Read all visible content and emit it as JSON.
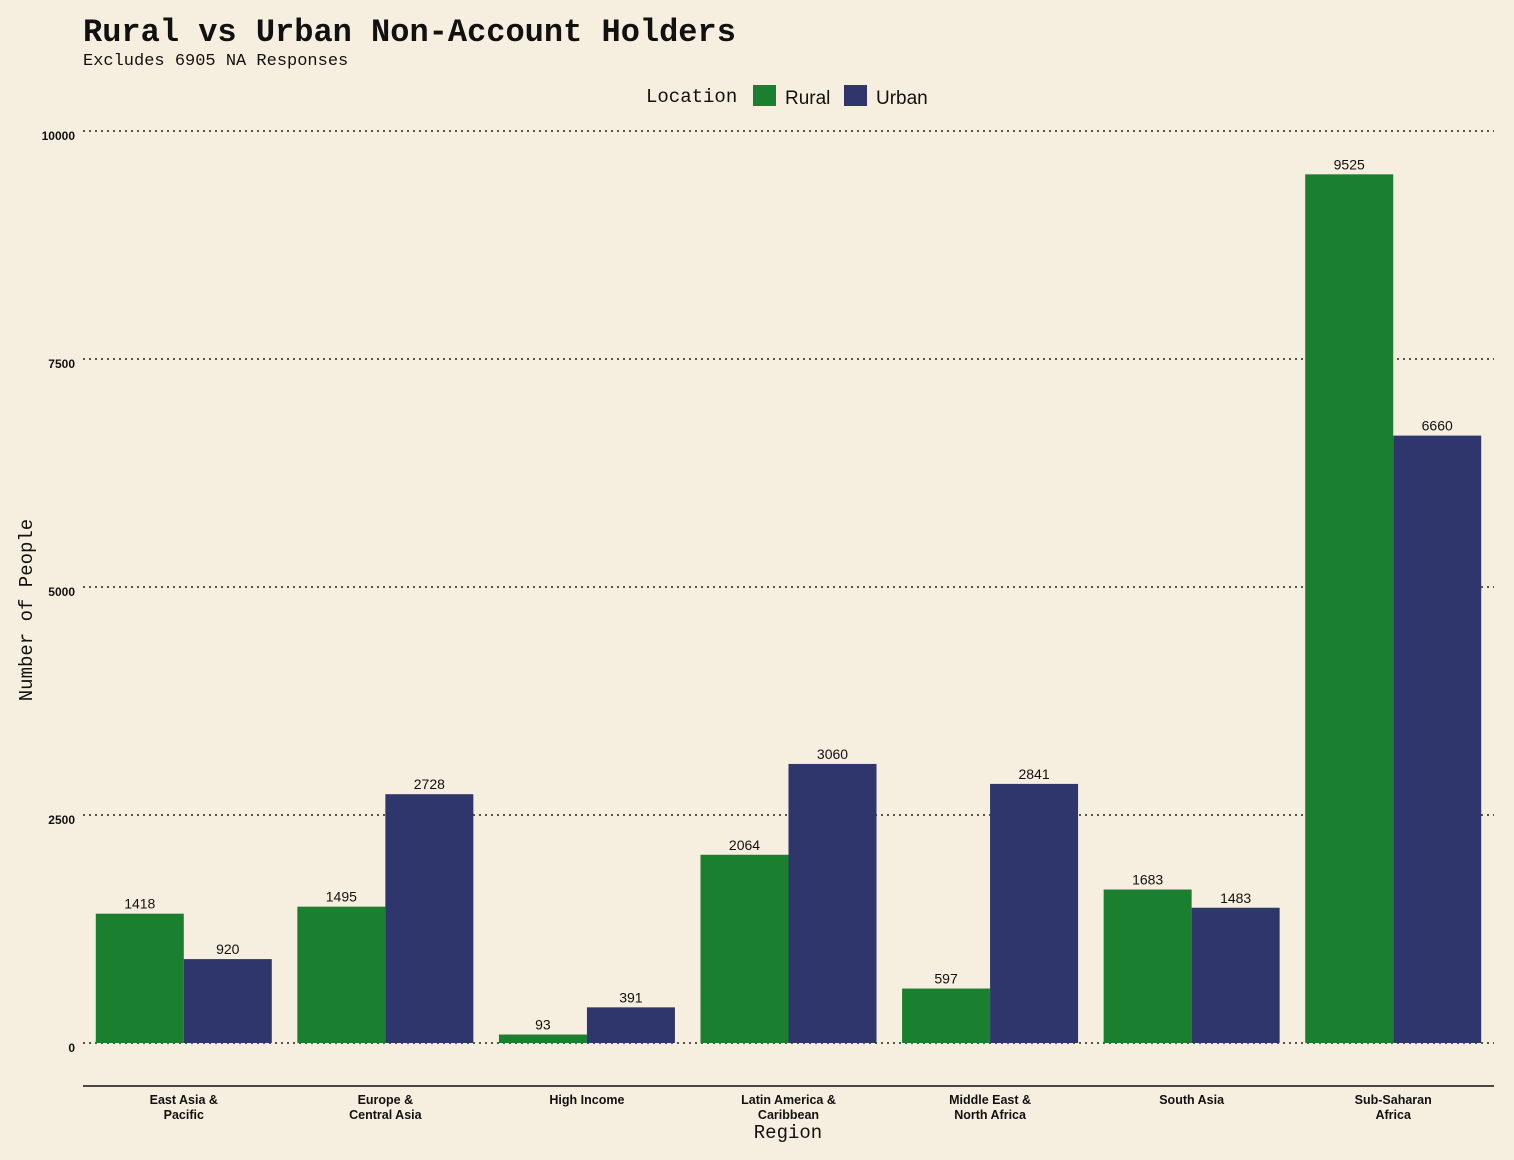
{
  "chart_data": {
    "type": "bar",
    "title": "Rural vs Urban Non-Account Holders",
    "subtitle": "Excludes 6905 NA Responses",
    "xlabel": "Region",
    "ylabel": "Number of People",
    "legend": {
      "title": "Location",
      "placement": "top-center"
    },
    "categories": [
      [
        "East Asia &",
        "Pacific"
      ],
      [
        "Europe &",
        "Central Asia"
      ],
      [
        "High Income"
      ],
      [
        "Latin America &",
        "Caribbean"
      ],
      [
        "Middle East &",
        "North Africa"
      ],
      [
        "South Asia"
      ],
      [
        "Sub-Saharan",
        "Africa"
      ]
    ],
    "series": [
      {
        "name": "Rural",
        "color": "#1a7f2e",
        "values": [
          1418,
          1495,
          93,
          2064,
          597,
          1683,
          9525
        ]
      },
      {
        "name": "Urban",
        "color": "#2e366c",
        "values": [
          920,
          2728,
          391,
          3060,
          2841,
          1483,
          6660
        ]
      }
    ],
    "ylim": [
      0,
      10000
    ],
    "yticks": [
      0,
      2500,
      5000,
      7500,
      10000
    ],
    "grid": "horizontal-dotted"
  }
}
